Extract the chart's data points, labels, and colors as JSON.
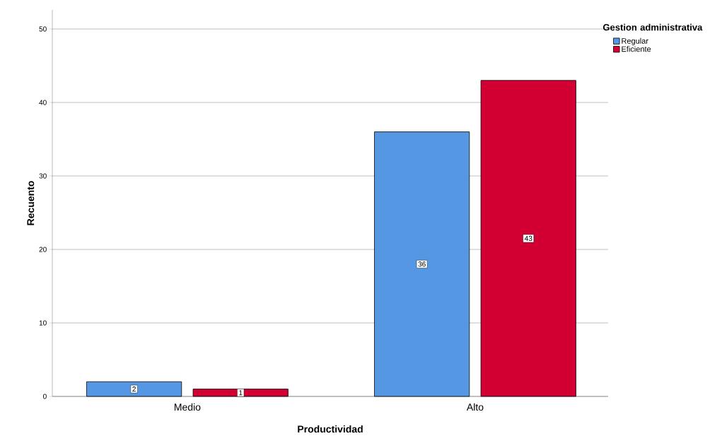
{
  "chart_data": {
    "type": "bar",
    "xlabel": "Productividad",
    "ylabel": "Recuento",
    "legend_title": "Gestion administrativa",
    "categories": [
      "Medio",
      "Alto"
    ],
    "series": [
      {
        "name": "Regular",
        "color": "#5597e2",
        "values": [
          2,
          36
        ]
      },
      {
        "name": "Eficiente",
        "color": "#d20032",
        "values": [
          1,
          43
        ]
      }
    ],
    "ylim": [
      0,
      52.6
    ],
    "yticks": [
      0,
      10,
      20,
      30,
      40,
      50
    ],
    "grid": "y",
    "legend": "top right",
    "data_labels": true
  }
}
